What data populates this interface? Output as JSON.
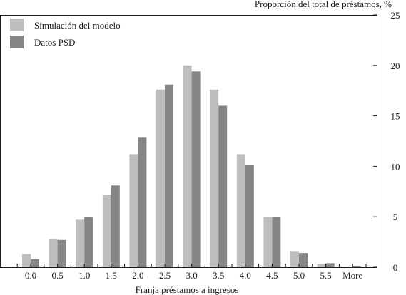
{
  "chart_data": {
    "type": "bar",
    "ylabel": "Proporción del total de préstamos, %",
    "xlabel": "Franja préstamos a ingresos",
    "categories": [
      "0.0",
      "0.5",
      "1.0",
      "1.5",
      "2.0",
      "2.5",
      "3.0",
      "3.5",
      "4.0",
      "4.5",
      "5.0",
      "5.5",
      "More"
    ],
    "series": [
      {
        "name": "Simulación del modelo",
        "color": "#bdbdbd",
        "values": [
          1.3,
          2.8,
          4.7,
          7.2,
          11.2,
          17.6,
          20.0,
          17.6,
          11.2,
          5.0,
          1.6,
          0.3,
          0.0
        ]
      },
      {
        "name": "Datos PSD",
        "color": "#858585",
        "values": [
          0.8,
          2.7,
          5.0,
          8.1,
          12.9,
          18.1,
          19.4,
          16.0,
          10.1,
          5.0,
          1.4,
          0.4,
          0.1
        ]
      }
    ],
    "ylim": [
      0,
      25
    ],
    "yticks": [
      0,
      5,
      10,
      15,
      20,
      25
    ],
    "yaxis_side": "right",
    "grid": false,
    "legend_position": "top-left"
  }
}
